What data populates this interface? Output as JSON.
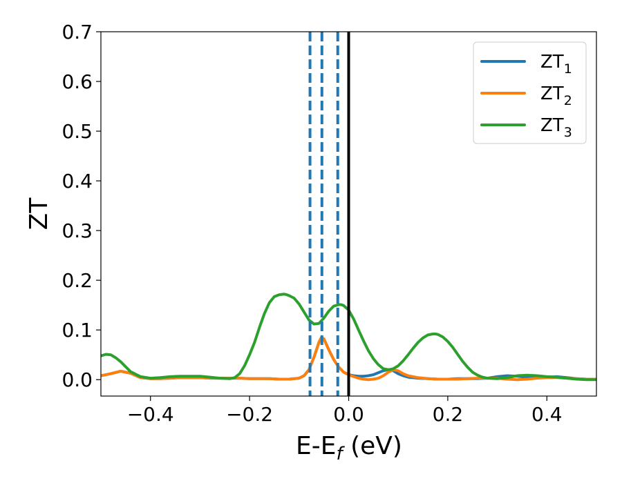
{
  "chart_data": {
    "type": "line",
    "xlabel": "E-E",
    "xlabel_sub": "f",
    "xlabel_unit": " (eV)",
    "ylabel": "ZT",
    "xlim": [
      -0.5,
      0.5
    ],
    "ylim": [
      -0.033,
      0.7
    ],
    "xticks": [
      -0.4,
      -0.2,
      0.0,
      0.2,
      0.4
    ],
    "xtick_labels": [
      "−0.4",
      "−0.2",
      "0.0",
      "0.2",
      "0.4"
    ],
    "yticks": [
      0.0,
      0.1,
      0.2,
      0.3,
      0.4,
      0.5,
      0.6,
      0.7
    ],
    "ytick_labels": [
      "0.0",
      "0.1",
      "0.2",
      "0.3",
      "0.4",
      "0.5",
      "0.6",
      "0.7"
    ],
    "grid": false,
    "legend_position": "top-right",
    "vlines": [
      {
        "x": 0.0,
        "style": "solid",
        "color": "#000000"
      },
      {
        "x": -0.078,
        "style": "dashed",
        "color": "#1f77b4"
      },
      {
        "x": -0.054,
        "style": "dashed",
        "color": "#1f77b4"
      },
      {
        "x": -0.022,
        "style": "dashed",
        "color": "#1f77b4"
      }
    ],
    "series": [
      {
        "name": "ZT",
        "sub": "1",
        "color": "#1f77b4",
        "x": [
          -0.5,
          -0.48,
          -0.46,
          -0.44,
          -0.42,
          -0.4,
          -0.38,
          -0.36,
          -0.34,
          -0.32,
          -0.3,
          -0.28,
          -0.26,
          -0.24,
          -0.22,
          -0.2,
          -0.18,
          -0.16,
          -0.14,
          -0.12,
          -0.1,
          -0.09,
          -0.08,
          -0.07,
          -0.06,
          -0.055,
          -0.05,
          -0.04,
          -0.03,
          -0.02,
          -0.01,
          0.0,
          0.01,
          0.02,
          0.03,
          0.04,
          0.05,
          0.06,
          0.07,
          0.08,
          0.09,
          0.1,
          0.11,
          0.12,
          0.14,
          0.16,
          0.18,
          0.2,
          0.22,
          0.24,
          0.26,
          0.28,
          0.3,
          0.32,
          0.34,
          0.36,
          0.38,
          0.4,
          0.42,
          0.44,
          0.46,
          0.48,
          0.5
        ],
        "y": [
          0.008,
          0.012,
          0.017,
          0.013,
          0.004,
          0.002,
          0.002,
          0.003,
          0.004,
          0.004,
          0.004,
          0.003,
          0.003,
          0.003,
          0.003,
          0.002,
          0.002,
          0.002,
          0.001,
          0.001,
          0.003,
          0.008,
          0.02,
          0.045,
          0.075,
          0.085,
          0.082,
          0.06,
          0.04,
          0.025,
          0.015,
          0.01,
          0.008,
          0.007,
          0.007,
          0.008,
          0.01,
          0.014,
          0.018,
          0.02,
          0.018,
          0.012,
          0.008,
          0.005,
          0.003,
          0.002,
          0.001,
          0.001,
          0.002,
          0.002,
          0.002,
          0.003,
          0.006,
          0.008,
          0.007,
          0.005,
          0.004,
          0.005,
          0.006,
          0.004,
          0.002,
          0.001,
          0.001
        ]
      },
      {
        "name": "ZT",
        "sub": "2",
        "color": "#ff7f0e",
        "x": [
          -0.5,
          -0.48,
          -0.46,
          -0.44,
          -0.42,
          -0.4,
          -0.38,
          -0.36,
          -0.34,
          -0.32,
          -0.3,
          -0.28,
          -0.26,
          -0.24,
          -0.22,
          -0.2,
          -0.18,
          -0.16,
          -0.14,
          -0.12,
          -0.1,
          -0.09,
          -0.08,
          -0.07,
          -0.06,
          -0.055,
          -0.05,
          -0.04,
          -0.03,
          -0.02,
          -0.01,
          0.0,
          0.01,
          0.02,
          0.03,
          0.04,
          0.05,
          0.06,
          0.07,
          0.08,
          0.09,
          0.1,
          0.11,
          0.12,
          0.14,
          0.16,
          0.18,
          0.2,
          0.22,
          0.24,
          0.26,
          0.28,
          0.3,
          0.32,
          0.34,
          0.36,
          0.38,
          0.4,
          0.42,
          0.44,
          0.46,
          0.48,
          0.5
        ],
        "y": [
          0.008,
          0.012,
          0.017,
          0.013,
          0.004,
          0.002,
          0.002,
          0.003,
          0.004,
          0.004,
          0.004,
          0.003,
          0.003,
          0.003,
          0.003,
          0.002,
          0.002,
          0.002,
          0.001,
          0.001,
          0.003,
          0.008,
          0.02,
          0.045,
          0.075,
          0.085,
          0.082,
          0.06,
          0.04,
          0.025,
          0.015,
          0.01,
          0.006,
          0.003,
          0.001,
          0.0,
          0.001,
          0.003,
          0.008,
          0.015,
          0.02,
          0.018,
          0.012,
          0.008,
          0.004,
          0.002,
          0.001,
          0.001,
          0.001,
          0.002,
          0.003,
          0.003,
          0.003,
          0.001,
          0.0,
          0.001,
          0.003,
          0.004,
          0.004,
          0.003,
          0.002,
          0.001,
          0.001
        ]
      },
      {
        "name": "ZT",
        "sub": "3",
        "color": "#2ca02c",
        "x": [
          -0.5,
          -0.49,
          -0.48,
          -0.47,
          -0.46,
          -0.45,
          -0.44,
          -0.42,
          -0.4,
          -0.38,
          -0.36,
          -0.34,
          -0.32,
          -0.3,
          -0.28,
          -0.26,
          -0.24,
          -0.23,
          -0.22,
          -0.21,
          -0.2,
          -0.19,
          -0.18,
          -0.17,
          -0.16,
          -0.15,
          -0.14,
          -0.13,
          -0.125,
          -0.12,
          -0.11,
          -0.1,
          -0.09,
          -0.08,
          -0.07,
          -0.06,
          -0.05,
          -0.04,
          -0.03,
          -0.02,
          -0.015,
          -0.01,
          0.0,
          0.01,
          0.02,
          0.03,
          0.04,
          0.05,
          0.06,
          0.07,
          0.08,
          0.09,
          0.1,
          0.11,
          0.12,
          0.13,
          0.14,
          0.15,
          0.16,
          0.17,
          0.175,
          0.18,
          0.19,
          0.2,
          0.21,
          0.22,
          0.23,
          0.24,
          0.25,
          0.26,
          0.27,
          0.28,
          0.3,
          0.32,
          0.34,
          0.36,
          0.38,
          0.4,
          0.42,
          0.44,
          0.46,
          0.48,
          0.5
        ],
        "y": [
          0.048,
          0.051,
          0.05,
          0.044,
          0.036,
          0.026,
          0.016,
          0.006,
          0.003,
          0.004,
          0.006,
          0.007,
          0.007,
          0.007,
          0.005,
          0.003,
          0.002,
          0.004,
          0.012,
          0.028,
          0.05,
          0.075,
          0.105,
          0.133,
          0.155,
          0.167,
          0.171,
          0.172,
          0.171,
          0.169,
          0.164,
          0.152,
          0.136,
          0.12,
          0.112,
          0.113,
          0.124,
          0.138,
          0.148,
          0.151,
          0.151,
          0.149,
          0.14,
          0.122,
          0.1,
          0.078,
          0.058,
          0.042,
          0.03,
          0.022,
          0.02,
          0.022,
          0.028,
          0.038,
          0.05,
          0.063,
          0.075,
          0.084,
          0.09,
          0.092,
          0.092,
          0.091,
          0.086,
          0.077,
          0.065,
          0.051,
          0.037,
          0.025,
          0.015,
          0.009,
          0.005,
          0.003,
          0.002,
          0.004,
          0.008,
          0.009,
          0.008,
          0.006,
          0.005,
          0.003,
          0.001,
          0.0,
          0.0
        ]
      }
    ]
  }
}
